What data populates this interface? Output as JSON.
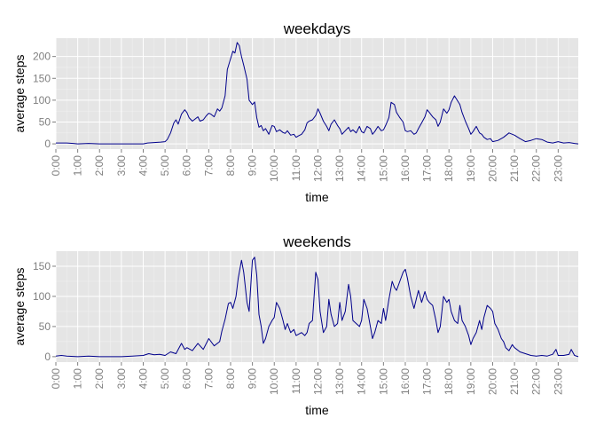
{
  "chart_data": [
    {
      "type": "line",
      "title": "weekdays",
      "xlabel": "time",
      "ylabel": "average steps",
      "x_tick_labels": [
        "0:00",
        "1:00",
        "2:00",
        "3:00",
        "4:00",
        "5:00",
        "6:00",
        "7:00",
        "8:00",
        "9:00",
        "10:00",
        "11:00",
        "12:00",
        "13:00",
        "14:00",
        "15:00",
        "16:00",
        "17:00",
        "18:00",
        "19:00",
        "20:00",
        "21:00",
        "22:00",
        "23:00"
      ],
      "y_ticks": [
        0,
        50,
        100,
        150,
        200
      ],
      "xlim": [
        0,
        23.92
      ],
      "ylim": [
        -12,
        242
      ],
      "grid": true,
      "color": "#00008b",
      "points": [
        [
          0,
          2
        ],
        [
          0.5,
          2
        ],
        [
          0.8,
          1
        ],
        [
          1,
          0
        ],
        [
          1.5,
          1
        ],
        [
          2,
          0
        ],
        [
          2.5,
          0
        ],
        [
          3,
          0
        ],
        [
          3.5,
          0
        ],
        [
          4,
          0
        ],
        [
          4.2,
          2
        ],
        [
          4.5,
          3
        ],
        [
          4.8,
          4
        ],
        [
          5,
          5
        ],
        [
          5.1,
          10
        ],
        [
          5.25,
          25
        ],
        [
          5.4,
          48
        ],
        [
          5.5,
          55
        ],
        [
          5.6,
          45
        ],
        [
          5.75,
          68
        ],
        [
          5.9,
          78
        ],
        [
          6,
          72
        ],
        [
          6.1,
          60
        ],
        [
          6.25,
          52
        ],
        [
          6.4,
          58
        ],
        [
          6.5,
          62
        ],
        [
          6.6,
          52
        ],
        [
          6.75,
          55
        ],
        [
          6.9,
          65
        ],
        [
          7,
          70
        ],
        [
          7.1,
          68
        ],
        [
          7.25,
          62
        ],
        [
          7.4,
          80
        ],
        [
          7.5,
          75
        ],
        [
          7.6,
          82
        ],
        [
          7.75,
          110
        ],
        [
          7.85,
          170
        ],
        [
          8,
          195
        ],
        [
          8.1,
          212
        ],
        [
          8.2,
          208
        ],
        [
          8.3,
          232
        ],
        [
          8.4,
          225
        ],
        [
          8.5,
          200
        ],
        [
          8.6,
          180
        ],
        [
          8.75,
          148
        ],
        [
          8.85,
          100
        ],
        [
          9,
          90
        ],
        [
          9.1,
          96
        ],
        [
          9.2,
          60
        ],
        [
          9.3,
          38
        ],
        [
          9.4,
          42
        ],
        [
          9.5,
          30
        ],
        [
          9.6,
          35
        ],
        [
          9.75,
          22
        ],
        [
          9.9,
          42
        ],
        [
          10,
          40
        ],
        [
          10.1,
          28
        ],
        [
          10.25,
          32
        ],
        [
          10.4,
          26
        ],
        [
          10.5,
          24
        ],
        [
          10.6,
          30
        ],
        [
          10.75,
          20
        ],
        [
          10.9,
          22
        ],
        [
          11,
          15
        ],
        [
          11.1,
          18
        ],
        [
          11.25,
          22
        ],
        [
          11.4,
          32
        ],
        [
          11.5,
          48
        ],
        [
          11.6,
          52
        ],
        [
          11.75,
          55
        ],
        [
          11.9,
          65
        ],
        [
          12,
          80
        ],
        [
          12.1,
          70
        ],
        [
          12.25,
          52
        ],
        [
          12.4,
          40
        ],
        [
          12.5,
          30
        ],
        [
          12.6,
          45
        ],
        [
          12.75,
          55
        ],
        [
          12.9,
          42
        ],
        [
          13,
          35
        ],
        [
          13.1,
          22
        ],
        [
          13.25,
          30
        ],
        [
          13.4,
          38
        ],
        [
          13.5,
          28
        ],
        [
          13.6,
          32
        ],
        [
          13.75,
          25
        ],
        [
          13.9,
          40
        ],
        [
          14,
          28
        ],
        [
          14.1,
          25
        ],
        [
          14.25,
          40
        ],
        [
          14.4,
          35
        ],
        [
          14.5,
          22
        ],
        [
          14.6,
          28
        ],
        [
          14.75,
          40
        ],
        [
          14.9,
          30
        ],
        [
          15,
          32
        ],
        [
          15.1,
          42
        ],
        [
          15.25,
          60
        ],
        [
          15.35,
          95
        ],
        [
          15.5,
          90
        ],
        [
          15.6,
          72
        ],
        [
          15.75,
          60
        ],
        [
          15.9,
          50
        ],
        [
          16,
          30
        ],
        [
          16.1,
          28
        ],
        [
          16.25,
          30
        ],
        [
          16.4,
          22
        ],
        [
          16.5,
          25
        ],
        [
          16.6,
          35
        ],
        [
          16.75,
          48
        ],
        [
          16.9,
          62
        ],
        [
          17,
          78
        ],
        [
          17.1,
          72
        ],
        [
          17.25,
          62
        ],
        [
          17.4,
          55
        ],
        [
          17.5,
          40
        ],
        [
          17.6,
          50
        ],
        [
          17.75,
          80
        ],
        [
          17.9,
          70
        ],
        [
          18,
          78
        ],
        [
          18.1,
          95
        ],
        [
          18.25,
          110
        ],
        [
          18.4,
          98
        ],
        [
          18.5,
          90
        ],
        [
          18.6,
          72
        ],
        [
          18.75,
          52
        ],
        [
          18.9,
          35
        ],
        [
          19,
          22
        ],
        [
          19.1,
          28
        ],
        [
          19.25,
          40
        ],
        [
          19.4,
          25
        ],
        [
          19.5,
          22
        ],
        [
          19.6,
          15
        ],
        [
          19.75,
          10
        ],
        [
          19.9,
          12
        ],
        [
          20,
          5
        ],
        [
          20.25,
          8
        ],
        [
          20.5,
          15
        ],
        [
          20.75,
          25
        ],
        [
          21,
          20
        ],
        [
          21.25,
          12
        ],
        [
          21.5,
          5
        ],
        [
          21.75,
          8
        ],
        [
          22,
          12
        ],
        [
          22.25,
          10
        ],
        [
          22.5,
          4
        ],
        [
          22.75,
          2
        ],
        [
          23,
          5
        ],
        [
          23.25,
          2
        ],
        [
          23.5,
          3
        ],
        [
          23.75,
          1
        ],
        [
          23.92,
          0
        ]
      ]
    },
    {
      "type": "line",
      "title": "weekends",
      "xlabel": "time",
      "ylabel": "average steps",
      "x_tick_labels": [
        "0:00",
        "1:00",
        "2:00",
        "3:00",
        "4:00",
        "5:00",
        "6:00",
        "7:00",
        "8:00",
        "9:00",
        "10:00",
        "11:00",
        "12:00",
        "13:00",
        "14:00",
        "15:00",
        "16:00",
        "17:00",
        "18:00",
        "19:00",
        "20:00",
        "21:00",
        "22:00",
        "23:00"
      ],
      "y_ticks": [
        0,
        50,
        100,
        150
      ],
      "xlim": [
        0,
        23.92
      ],
      "ylim": [
        -9,
        175
      ],
      "grid": true,
      "color": "#00008b",
      "points": [
        [
          0,
          1
        ],
        [
          0.25,
          2
        ],
        [
          0.5,
          1
        ],
        [
          1,
          0
        ],
        [
          1.5,
          1
        ],
        [
          2,
          0
        ],
        [
          2.5,
          0
        ],
        [
          3,
          0
        ],
        [
          3.5,
          1
        ],
        [
          4,
          2
        ],
        [
          4.25,
          5
        ],
        [
          4.5,
          3
        ],
        [
          4.75,
          4
        ],
        [
          5,
          2
        ],
        [
          5.25,
          8
        ],
        [
          5.5,
          5
        ],
        [
          5.75,
          22
        ],
        [
          5.9,
          12
        ],
        [
          6,
          15
        ],
        [
          6.25,
          10
        ],
        [
          6.5,
          22
        ],
        [
          6.75,
          12
        ],
        [
          7,
          30
        ],
        [
          7.25,
          18
        ],
        [
          7.5,
          25
        ],
        [
          7.6,
          42
        ],
        [
          7.75,
          62
        ],
        [
          7.9,
          88
        ],
        [
          8,
          90
        ],
        [
          8.1,
          80
        ],
        [
          8.25,
          100
        ],
        [
          8.35,
          130
        ],
        [
          8.5,
          160
        ],
        [
          8.6,
          140
        ],
        [
          8.75,
          90
        ],
        [
          8.85,
          75
        ],
        [
          9,
          160
        ],
        [
          9.1,
          165
        ],
        [
          9.2,
          135
        ],
        [
          9.3,
          70
        ],
        [
          9.4,
          50
        ],
        [
          9.5,
          22
        ],
        [
          9.6,
          30
        ],
        [
          9.75,
          50
        ],
        [
          9.9,
          60
        ],
        [
          10,
          65
        ],
        [
          10.1,
          90
        ],
        [
          10.25,
          80
        ],
        [
          10.4,
          60
        ],
        [
          10.5,
          45
        ],
        [
          10.6,
          55
        ],
        [
          10.75,
          40
        ],
        [
          10.9,
          45
        ],
        [
          11,
          35
        ],
        [
          11.25,
          40
        ],
        [
          11.4,
          35
        ],
        [
          11.5,
          40
        ],
        [
          11.6,
          55
        ],
        [
          11.75,
          60
        ],
        [
          11.9,
          140
        ],
        [
          12,
          128
        ],
        [
          12.1,
          75
        ],
        [
          12.25,
          40
        ],
        [
          12.4,
          50
        ],
        [
          12.5,
          95
        ],
        [
          12.6,
          70
        ],
        [
          12.75,
          50
        ],
        [
          12.9,
          55
        ],
        [
          13,
          90
        ],
        [
          13.1,
          60
        ],
        [
          13.25,
          75
        ],
        [
          13.4,
          120
        ],
        [
          13.5,
          100
        ],
        [
          13.6,
          60
        ],
        [
          13.75,
          55
        ],
        [
          13.9,
          50
        ],
        [
          14,
          60
        ],
        [
          14.1,
          95
        ],
        [
          14.25,
          80
        ],
        [
          14.4,
          50
        ],
        [
          14.5,
          30
        ],
        [
          14.6,
          40
        ],
        [
          14.75,
          60
        ],
        [
          14.9,
          55
        ],
        [
          15,
          80
        ],
        [
          15.1,
          60
        ],
        [
          15.25,
          95
        ],
        [
          15.4,
          125
        ],
        [
          15.5,
          115
        ],
        [
          15.6,
          110
        ],
        [
          15.75,
          125
        ],
        [
          15.9,
          140
        ],
        [
          16,
          145
        ],
        [
          16.1,
          130
        ],
        [
          16.25,
          100
        ],
        [
          16.4,
          80
        ],
        [
          16.5,
          95
        ],
        [
          16.6,
          110
        ],
        [
          16.75,
          90
        ],
        [
          16.9,
          108
        ],
        [
          17,
          95
        ],
        [
          17.1,
          90
        ],
        [
          17.25,
          85
        ],
        [
          17.4,
          60
        ],
        [
          17.5,
          40
        ],
        [
          17.6,
          50
        ],
        [
          17.75,
          100
        ],
        [
          17.9,
          90
        ],
        [
          18,
          95
        ],
        [
          18.1,
          75
        ],
        [
          18.25,
          60
        ],
        [
          18.4,
          55
        ],
        [
          18.5,
          85
        ],
        [
          18.6,
          60
        ],
        [
          18.75,
          50
        ],
        [
          18.9,
          35
        ],
        [
          19,
          20
        ],
        [
          19.1,
          30
        ],
        [
          19.25,
          40
        ],
        [
          19.4,
          60
        ],
        [
          19.5,
          45
        ],
        [
          19.6,
          65
        ],
        [
          19.75,
          85
        ],
        [
          19.9,
          80
        ],
        [
          20,
          75
        ],
        [
          20.1,
          55
        ],
        [
          20.25,
          45
        ],
        [
          20.4,
          30
        ],
        [
          20.5,
          25
        ],
        [
          20.6,
          15
        ],
        [
          20.75,
          10
        ],
        [
          20.9,
          20
        ],
        [
          21,
          15
        ],
        [
          21.25,
          8
        ],
        [
          21.5,
          5
        ],
        [
          21.75,
          2
        ],
        [
          22,
          1
        ],
        [
          22.25,
          2
        ],
        [
          22.5,
          1
        ],
        [
          22.75,
          4
        ],
        [
          22.9,
          12
        ],
        [
          23,
          2
        ],
        [
          23.25,
          2
        ],
        [
          23.5,
          4
        ],
        [
          23.6,
          12
        ],
        [
          23.75,
          2
        ],
        [
          23.92,
          0
        ]
      ]
    }
  ]
}
